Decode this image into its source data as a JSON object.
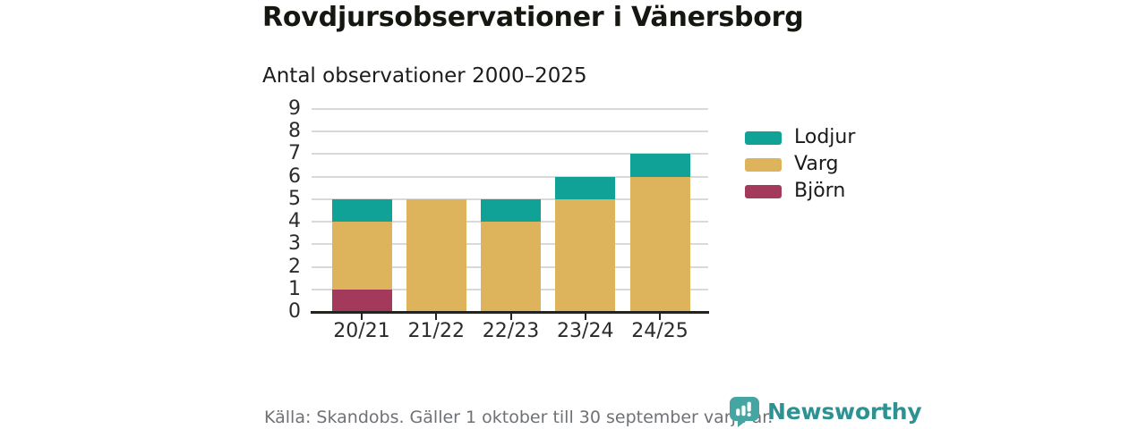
{
  "chart_data": {
    "type": "bar",
    "stacked": true,
    "title": "Rovdjursobservationer i Vänersborg",
    "subtitle": "Antal observationer 2000–2025",
    "categories": [
      "20/21",
      "21/22",
      "22/23",
      "23/24",
      "24/25"
    ],
    "series": [
      {
        "name": "Björn",
        "color": "#a43a5b",
        "values": [
          1,
          0,
          0,
          0,
          0
        ]
      },
      {
        "name": "Varg",
        "color": "#ddb35c",
        "values": [
          3,
          5,
          4,
          5,
          6
        ]
      },
      {
        "name": "Lodjur",
        "color": "#10a296",
        "values": [
          1,
          0,
          1,
          1,
          1
        ]
      }
    ],
    "totals": [
      5,
      5,
      5,
      6,
      7
    ],
    "ylim": [
      0,
      9
    ],
    "yticks": [
      0,
      1,
      2,
      3,
      4,
      5,
      6,
      7,
      8,
      9
    ],
    "legend": [
      "Lodjur",
      "Varg",
      "Björn"
    ],
    "legend_position": "right",
    "grid": "horizontal",
    "gridline_color": "#d9d9d9",
    "axis_color": "#23241f"
  },
  "footer": {
    "source": "Källa: Skandobs. Gäller 1 oktober till 30 september varje år.",
    "brand": "Newsworthy",
    "brand_color": "#2f9292"
  }
}
